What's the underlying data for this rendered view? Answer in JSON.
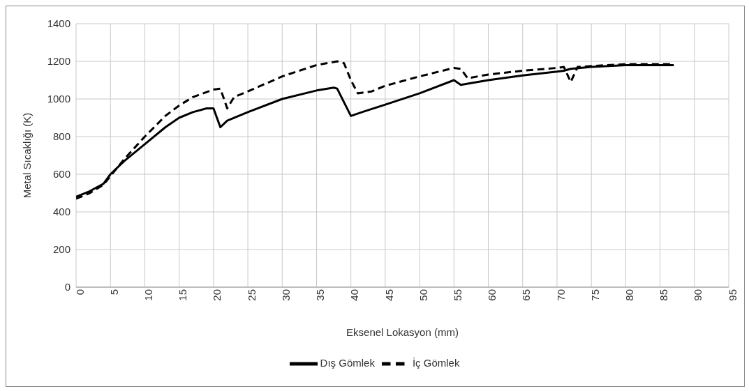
{
  "chart_data": {
    "type": "line",
    "xlabel": "Eksenel Lokasyon (mm)",
    "ylabel": "Metal Sıcaklığı (K)",
    "xlim": [
      0,
      95
    ],
    "xticks": [
      0,
      5,
      10,
      15,
      20,
      25,
      30,
      35,
      40,
      45,
      50,
      55,
      60,
      65,
      70,
      75,
      80,
      85,
      90,
      95
    ],
    "ylim": [
      0,
      1400
    ],
    "yticks": [
      0,
      200,
      400,
      600,
      800,
      1000,
      1200,
      1400
    ],
    "grid": true,
    "legend": "bottom",
    "marker": "none",
    "series": [
      {
        "name": "Dış Gömlek",
        "color": "#000000",
        "line_style": "solid",
        "x": [
          0,
          2,
          4,
          5,
          7,
          10,
          13,
          15,
          17,
          19,
          20,
          21,
          22,
          25,
          30,
          35,
          37.5,
          38,
          40,
          42,
          45,
          50,
          55,
          56,
          60,
          65,
          70,
          71,
          72,
          75,
          80,
          87
        ],
        "values": [
          480,
          510,
          550,
          600,
          670,
          760,
          850,
          900,
          930,
          950,
          950,
          850,
          885,
          930,
          1000,
          1045,
          1060,
          1055,
          910,
          935,
          970,
          1030,
          1100,
          1075,
          1100,
          1125,
          1145,
          1150,
          1160,
          1170,
          1180,
          1180
        ]
      },
      {
        "name": "İç Gömlek",
        "color": "#000000",
        "line_style": "dashed",
        "x": [
          0,
          2,
          4,
          5,
          7,
          10,
          13,
          15,
          17,
          20,
          21,
          22,
          23,
          25,
          30,
          35,
          38,
          39,
          40,
          41,
          43,
          45,
          50,
          55,
          56,
          57,
          60,
          65,
          70,
          71,
          72,
          73,
          75,
          80,
          87
        ],
        "values": [
          470,
          500,
          545,
          590,
          680,
          800,
          910,
          965,
          1010,
          1050,
          1055,
          950,
          1010,
          1040,
          1120,
          1180,
          1200,
          1190,
          1100,
          1030,
          1040,
          1070,
          1120,
          1165,
          1160,
          1110,
          1130,
          1150,
          1165,
          1170,
          1090,
          1170,
          1175,
          1185,
          1185
        ]
      }
    ]
  }
}
